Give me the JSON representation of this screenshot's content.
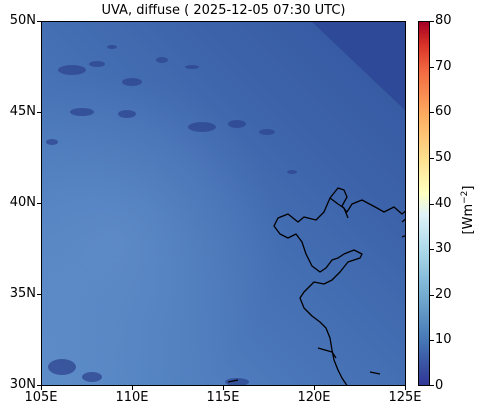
{
  "title": "UVA, diffuse ( 2025-12-05 07:30 UTC)",
  "map": {
    "lon_range": [
      105,
      125
    ],
    "lat_range": [
      30,
      50
    ],
    "x_ticks": [
      "105E",
      "110E",
      "115E",
      "120E",
      "125E"
    ],
    "y_ticks": [
      "50N",
      "45N",
      "40N",
      "35N",
      "30N"
    ],
    "field_colors": {
      "dominant": "#3b62a8",
      "southwest_light": "#5a8ac8",
      "northeast_dark": "#2c4795",
      "cloud_speckles": "#2a3f8a"
    },
    "coastline_color": "#000000"
  },
  "colorbar": {
    "range": [
      0,
      80
    ],
    "ticks": [
      "0",
      "10",
      "20",
      "30",
      "40",
      "50",
      "60",
      "70",
      "80"
    ],
    "unit": "[Wm",
    "unit_exp": "−2",
    "unit_end": "]",
    "colormap": "RdYlBu_r"
  }
}
